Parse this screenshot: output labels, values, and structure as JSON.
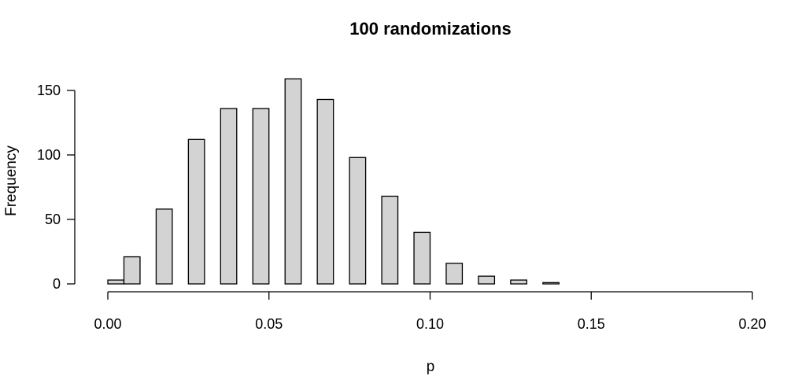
{
  "chart_data": {
    "type": "bar",
    "title": "100 randomizations",
    "xlabel": "p",
    "ylabel": "Frequency",
    "xlim": [
      0,
      0.2
    ],
    "ylim": [
      0,
      150
    ],
    "x_ticks": [
      "0.00",
      "0.05",
      "0.10",
      "0.15",
      "0.20"
    ],
    "y_ticks": [
      "0",
      "50",
      "100",
      "150"
    ],
    "bar_width": 0.005,
    "bar_color": "#d3d3d3",
    "grid": false,
    "bars": [
      {
        "x": 0.0025,
        "value": 3
      },
      {
        "x": 0.0075,
        "value": 21
      },
      {
        "x": 0.0175,
        "value": 58
      },
      {
        "x": 0.0275,
        "value": 112
      },
      {
        "x": 0.0375,
        "value": 136
      },
      {
        "x": 0.0475,
        "value": 136
      },
      {
        "x": 0.0575,
        "value": 159
      },
      {
        "x": 0.0675,
        "value": 143
      },
      {
        "x": 0.0775,
        "value": 98
      },
      {
        "x": 0.0875,
        "value": 68
      },
      {
        "x": 0.0975,
        "value": 40
      },
      {
        "x": 0.1075,
        "value": 16
      },
      {
        "x": 0.1175,
        "value": 6
      },
      {
        "x": 0.1275,
        "value": 3
      },
      {
        "x": 0.1375,
        "value": 1
      },
      {
        "x": 0.1425,
        "value": 0
      },
      {
        "x": 0.1475,
        "value": 0
      },
      {
        "x": 0.1525,
        "value": 0
      },
      {
        "x": 0.1575,
        "value": 0
      },
      {
        "x": 0.1625,
        "value": 0
      },
      {
        "x": 0.1675,
        "value": 0
      },
      {
        "x": 0.1725,
        "value": 0
      },
      {
        "x": 0.1775,
        "value": 0
      },
      {
        "x": 0.1825,
        "value": 0
      },
      {
        "x": 0.1875,
        "value": 0
      },
      {
        "x": 0.1925,
        "value": 0
      },
      {
        "x": 0.1975,
        "value": 0
      }
    ]
  }
}
